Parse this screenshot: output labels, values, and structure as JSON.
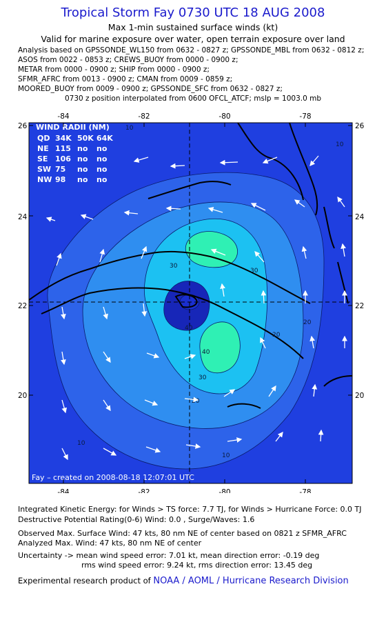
{
  "header": {
    "title": "Tropical Storm Fay 0730 UTC 18 AUG 2008",
    "subtitle": "Max 1-min sustained surface winds (kt)",
    "validity": "Valid for marine exposure over water, open terrain exposure over land",
    "analysis_lines": [
      "Analysis based on  GPSSONDE_WL150 from 0632 - 0827 z;  GPSSONDE_MBL from 0632 - 0812 z;",
      "ASOS from 0022 - 0853 z;  CREWS_BUOY from 0000 - 0900 z;",
      "METAR from 0000 - 0900 z;  SHIP from 0000 - 0900 z;",
      "SFMR_AFRC from 0013 - 0900 z;  CMAN from 0009 - 0859 z;",
      "MOORED_BUOY from 0009 - 0900 z;  GPSSONDE_SFC from 0632 - 0827 z;"
    ],
    "position_note": "0730 z position interpolated from 0600 OFCL_ATCF; mslp = 1003.0 mb"
  },
  "map": {
    "lon_ticks": [
      "-84",
      "-82",
      "-80",
      "-78"
    ],
    "lat_ticks": [
      "26",
      "24",
      "22",
      "20"
    ],
    "contour_labels": [
      "10",
      "10",
      "10",
      "10",
      "20",
      "20",
      "20",
      "30",
      "30",
      "30",
      "40",
      "40"
    ],
    "wind_radii": {
      "title": "WIND RADII (NM)",
      "header": [
        "QD",
        "34K",
        "50K",
        "64K"
      ],
      "rows": [
        [
          "NE",
          "115",
          "no",
          "no"
        ],
        [
          "SE",
          "106",
          "no",
          "no"
        ],
        [
          "SW",
          "75",
          "no",
          "no"
        ],
        [
          "NW",
          "98",
          "no",
          "no"
        ]
      ]
    },
    "credit": "Fay – created on 2008-08-18 12:07:01 UTC",
    "colors": {
      "ocean": "#1f3fe0",
      "level_10": "#2d63ea",
      "level_20": "#2f8ef0",
      "level_30": "#1cc1f2",
      "level_40": "#2ff0b4",
      "center_low": "#1726b8",
      "land": "#000000"
    }
  },
  "footer": {
    "ike": "Integrated Kinetic Energy:  for Winds > TS force: 7.7 TJ,  for Winds > Hurricane Force: 0.0 TJ",
    "dpr": "Destructive Potential Rating(0-6)   Wind: 0.0 , Surge/Waves: 1.6",
    "observed": "Observed Max. Surface Wind: 47 kts, 80 nm NE of center based on 0821 z SFMR_AFRC",
    "analyzed": "Analyzed Max. Wind: 47 kts, 80 nm NE of center",
    "uncertainty1": "Uncertainty -> mean wind speed error: 7.01 kt,   mean direction error:  -0.19 deg",
    "uncertainty2": "rms wind speed error: 9.24 kt,   rms direction error: 13.45 deg",
    "credit_prefix": "Experimental research product of",
    "credit_org": "NOAA / AOML / Hurricane Research Division"
  }
}
